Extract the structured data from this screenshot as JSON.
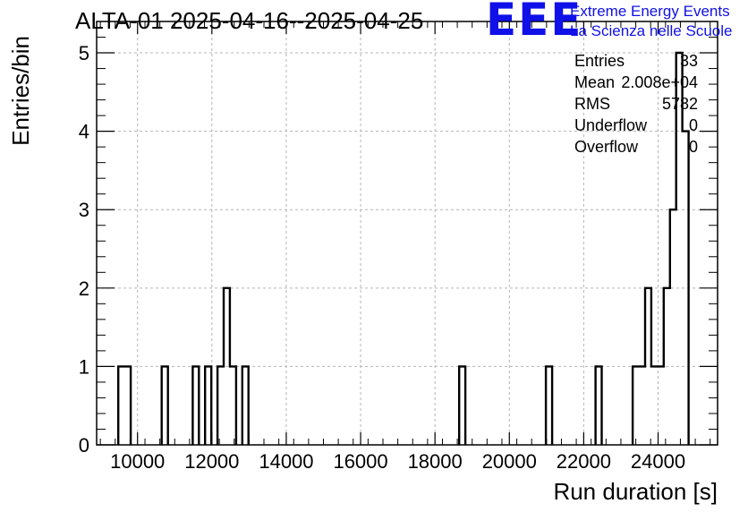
{
  "title": "ALTA-01 2025-04-16--2025-04-25",
  "logo": {
    "mark": "EEE",
    "line1": "Extreme Energy Events",
    "line2": "La Scienza nelle Scuole"
  },
  "stats": [
    {
      "label": "Entries",
      "value": "33"
    },
    {
      "label": "Mean",
      "value": "2.008e+04"
    },
    {
      "label": "RMS",
      "value": "5782"
    },
    {
      "label": "Underflow",
      "value": "0"
    },
    {
      "label": "Overflow",
      "value": "0"
    }
  ],
  "chart_data": {
    "type": "bar",
    "histogram": true,
    "xlabel": "Run duration [s]",
    "ylabel": "Entries/bin",
    "xlim": [
      8900,
      25600
    ],
    "ylim": [
      0,
      5.4
    ],
    "bin_width": 167,
    "xticks": [
      10000,
      12000,
      14000,
      16000,
      18000,
      20000,
      22000,
      24000
    ],
    "yticks": [
      0,
      1,
      2,
      3,
      4,
      5
    ],
    "grid": true,
    "line_color": "#000000",
    "bins": [
      {
        "x": 9483,
        "value": 1
      },
      {
        "x": 9650,
        "value": 1
      },
      {
        "x": 10650,
        "value": 1
      },
      {
        "x": 11484,
        "value": 1
      },
      {
        "x": 11817,
        "value": 1
      },
      {
        "x": 12150,
        "value": 1
      },
      {
        "x": 12317,
        "value": 2
      },
      {
        "x": 12484,
        "value": 1
      },
      {
        "x": 12817,
        "value": 1
      },
      {
        "x": 18650,
        "value": 1
      },
      {
        "x": 20983,
        "value": 1
      },
      {
        "x": 22317,
        "value": 1
      },
      {
        "x": 23317,
        "value": 1
      },
      {
        "x": 23484,
        "value": 1
      },
      {
        "x": 23651,
        "value": 2
      },
      {
        "x": 23818,
        "value": 1
      },
      {
        "x": 23985,
        "value": 1
      },
      {
        "x": 24152,
        "value": 2
      },
      {
        "x": 24319,
        "value": 3
      },
      {
        "x": 24486,
        "value": 5
      },
      {
        "x": 24653,
        "value": 4
      }
    ]
  }
}
